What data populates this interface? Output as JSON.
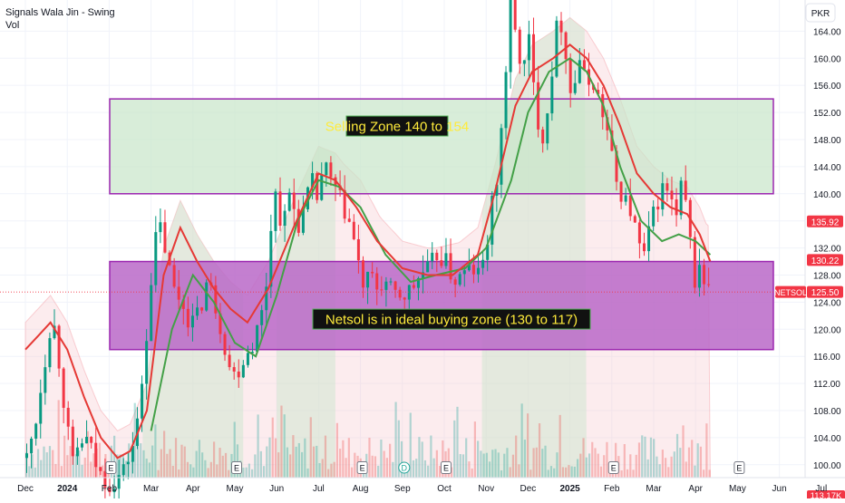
{
  "header": {
    "indicator_title": "Signals Wala Jin - Swing",
    "volume_label": "Vol"
  },
  "chart_data": {
    "type": "candlestick",
    "symbol": "NETSOL",
    "currency": "PKR",
    "y_ticks": [
      100.0,
      104.0,
      108.0,
      112.0,
      116.0,
      120.0,
      124.0,
      128.0,
      132.0,
      136.0,
      140.0,
      144.0,
      148.0,
      152.0,
      156.0,
      160.0,
      164.0
    ],
    "ylim": [
      98.1,
      168.6
    ],
    "x_tick_labels": [
      "Dec",
      "2024",
      "Feb",
      "Mar",
      "Apr",
      "May",
      "Jun",
      "Jul",
      "Aug",
      "Sep",
      "Oct",
      "Nov",
      "Dec",
      "2025",
      "Feb",
      "Mar",
      "Apr",
      "May",
      "Jun",
      "Jul"
    ],
    "zones": [
      {
        "label": "Selling Zone 140 to 154",
        "low": 140,
        "high": 154,
        "fill": "#c8e6c9",
        "border": "#9c27b0"
      },
      {
        "label": "Netsol is in ideal buying zone (130 to 117)",
        "low": 117,
        "high": 130,
        "fill": "#ba68c8",
        "border": "#9c27b0"
      }
    ],
    "price_labels": [
      {
        "value": 135.92,
        "text": "135.92",
        "color": "#f23645"
      },
      {
        "value": 130.22,
        "text": "130.22",
        "color": "#f23645"
      },
      {
        "value": 125.5,
        "text": "125.50",
        "color": "#f23645",
        "symbol": "NETSOL"
      }
    ],
    "current_price": 125.5,
    "volume_last": "113.17K",
    "event_markers": [
      {
        "month_index": 2,
        "label": "E"
      },
      {
        "month_index": 5,
        "label": "E"
      },
      {
        "month_index": 8,
        "label": "E"
      },
      {
        "month_index": 9,
        "label": "D"
      },
      {
        "month_index": 10,
        "label": "E"
      },
      {
        "month_index": 14,
        "label": "E"
      },
      {
        "month_index": 17,
        "label": "E"
      }
    ],
    "price_path": [
      [
        0,
        101
      ],
      [
        0.2,
        106
      ],
      [
        0.35,
        112
      ],
      [
        0.5,
        118
      ],
      [
        0.6,
        122
      ],
      [
        0.7,
        119
      ],
      [
        0.85,
        111
      ],
      [
        1.0,
        104
      ],
      [
        1.1,
        100
      ],
      [
        1.25,
        103
      ],
      [
        1.4,
        104
      ],
      [
        1.55,
        102
      ],
      [
        1.7,
        99
      ],
      [
        2.0,
        97
      ],
      [
        2.3,
        99
      ],
      [
        2.6,
        104
      ],
      [
        2.75,
        112
      ],
      [
        2.9,
        122
      ],
      [
        3.0,
        130
      ],
      [
        3.15,
        136
      ],
      [
        3.3,
        132
      ],
      [
        3.5,
        126
      ],
      [
        3.7,
        124
      ],
      [
        3.9,
        121
      ],
      [
        4.1,
        122
      ],
      [
        4.3,
        127
      ],
      [
        4.45,
        125
      ],
      [
        4.6,
        121
      ],
      [
        4.75,
        117
      ],
      [
        4.9,
        113
      ],
      [
        5.05,
        114
      ],
      [
        5.2,
        116
      ],
      [
        5.4,
        118
      ],
      [
        5.6,
        122
      ],
      [
        5.75,
        128
      ],
      [
        5.9,
        142
      ],
      [
        6.0,
        137
      ],
      [
        6.15,
        136
      ],
      [
        6.3,
        141
      ],
      [
        6.45,
        135
      ],
      [
        6.6,
        137
      ],
      [
        6.8,
        142
      ],
      [
        6.95,
        139
      ],
      [
        7.1,
        145
      ],
      [
        7.2,
        142
      ],
      [
        7.35,
        141
      ],
      [
        7.55,
        138
      ],
      [
        7.75,
        135
      ],
      [
        7.9,
        130
      ],
      [
        8.05,
        126
      ],
      [
        8.2,
        128
      ],
      [
        8.35,
        126
      ],
      [
        8.55,
        127
      ],
      [
        8.75,
        125
      ],
      [
        9.0,
        125
      ],
      [
        9.2,
        126
      ],
      [
        9.4,
        128
      ],
      [
        9.6,
        129
      ],
      [
        9.8,
        131
      ],
      [
        10.0,
        130
      ],
      [
        10.2,
        127
      ],
      [
        10.4,
        128
      ],
      [
        10.6,
        129
      ],
      [
        10.8,
        128
      ],
      [
        10.95,
        131
      ],
      [
        11.1,
        138
      ],
      [
        11.25,
        143
      ],
      [
        11.4,
        155
      ],
      [
        11.55,
        168
      ],
      [
        11.7,
        162
      ],
      [
        11.85,
        158
      ],
      [
        12.0,
        163
      ],
      [
        12.15,
        152
      ],
      [
        12.35,
        148
      ],
      [
        12.55,
        159
      ],
      [
        12.7,
        167
      ],
      [
        12.85,
        162
      ],
      [
        13.0,
        154
      ],
      [
        13.2,
        160
      ],
      [
        13.35,
        156
      ],
      [
        13.5,
        157
      ],
      [
        13.7,
        153
      ],
      [
        13.9,
        148
      ],
      [
        14.05,
        142
      ],
      [
        14.2,
        140
      ],
      [
        14.45,
        137
      ],
      [
        14.7,
        130
      ],
      [
        14.85,
        134
      ],
      [
        15.0,
        138
      ],
      [
        15.2,
        141
      ],
      [
        15.35,
        140
      ],
      [
        15.5,
        136
      ],
      [
        15.65,
        142
      ],
      [
        15.8,
        135
      ],
      [
        15.95,
        127
      ],
      [
        16.1,
        130
      ],
      [
        16.2,
        126
      ],
      [
        16.35,
        125.5
      ]
    ],
    "signal_green": [
      [
        3.0,
        105
      ],
      [
        3.5,
        120
      ],
      [
        4.0,
        128
      ],
      [
        4.5,
        124
      ],
      [
        5.0,
        118
      ],
      [
        5.5,
        116
      ],
      [
        6.0,
        125
      ],
      [
        6.5,
        136
      ],
      [
        7.0,
        142
      ],
      [
        7.5,
        141
      ],
      [
        8.0,
        138
      ],
      [
        8.6,
        131
      ],
      [
        9.2,
        127
      ],
      [
        9.8,
        128
      ],
      [
        10.5,
        129
      ],
      [
        11.0,
        132
      ],
      [
        11.6,
        142
      ],
      [
        12.0,
        152
      ],
      [
        12.5,
        158
      ],
      [
        13.0,
        160
      ],
      [
        13.4,
        158
      ],
      [
        13.8,
        153
      ],
      [
        14.2,
        144
      ],
      [
        14.7,
        136
      ],
      [
        15.2,
        133
      ],
      [
        15.6,
        134
      ],
      [
        16.0,
        133
      ],
      [
        16.35,
        131
      ]
    ],
    "signal_red": [
      [
        0,
        117
      ],
      [
        0.3,
        119
      ],
      [
        0.6,
        121
      ],
      [
        1.0,
        117
      ],
      [
        1.4,
        110
      ],
      [
        1.8,
        104
      ],
      [
        2.2,
        101
      ],
      [
        2.5,
        102
      ],
      [
        2.9,
        108
      ],
      [
        3.3,
        128
      ],
      [
        3.7,
        135
      ],
      [
        4.1,
        130
      ],
      [
        4.5,
        126
      ],
      [
        4.9,
        123
      ],
      [
        5.3,
        121
      ],
      [
        5.8,
        126
      ],
      [
        6.4,
        135
      ],
      [
        7.0,
        143
      ],
      [
        7.4,
        142
      ],
      [
        7.9,
        138
      ],
      [
        8.4,
        133
      ],
      [
        9.0,
        129
      ],
      [
        9.6,
        128
      ],
      [
        10.2,
        128
      ],
      [
        10.8,
        131
      ],
      [
        11.2,
        140
      ],
      [
        11.7,
        153
      ],
      [
        12.1,
        158
      ],
      [
        12.6,
        160
      ],
      [
        13.0,
        162
      ],
      [
        13.4,
        160
      ],
      [
        13.8,
        156
      ],
      [
        14.2,
        150
      ],
      [
        14.6,
        143
      ],
      [
        15.0,
        140
      ],
      [
        15.4,
        138
      ],
      [
        15.8,
        137
      ],
      [
        16.1,
        134
      ],
      [
        16.35,
        130
      ]
    ]
  }
}
